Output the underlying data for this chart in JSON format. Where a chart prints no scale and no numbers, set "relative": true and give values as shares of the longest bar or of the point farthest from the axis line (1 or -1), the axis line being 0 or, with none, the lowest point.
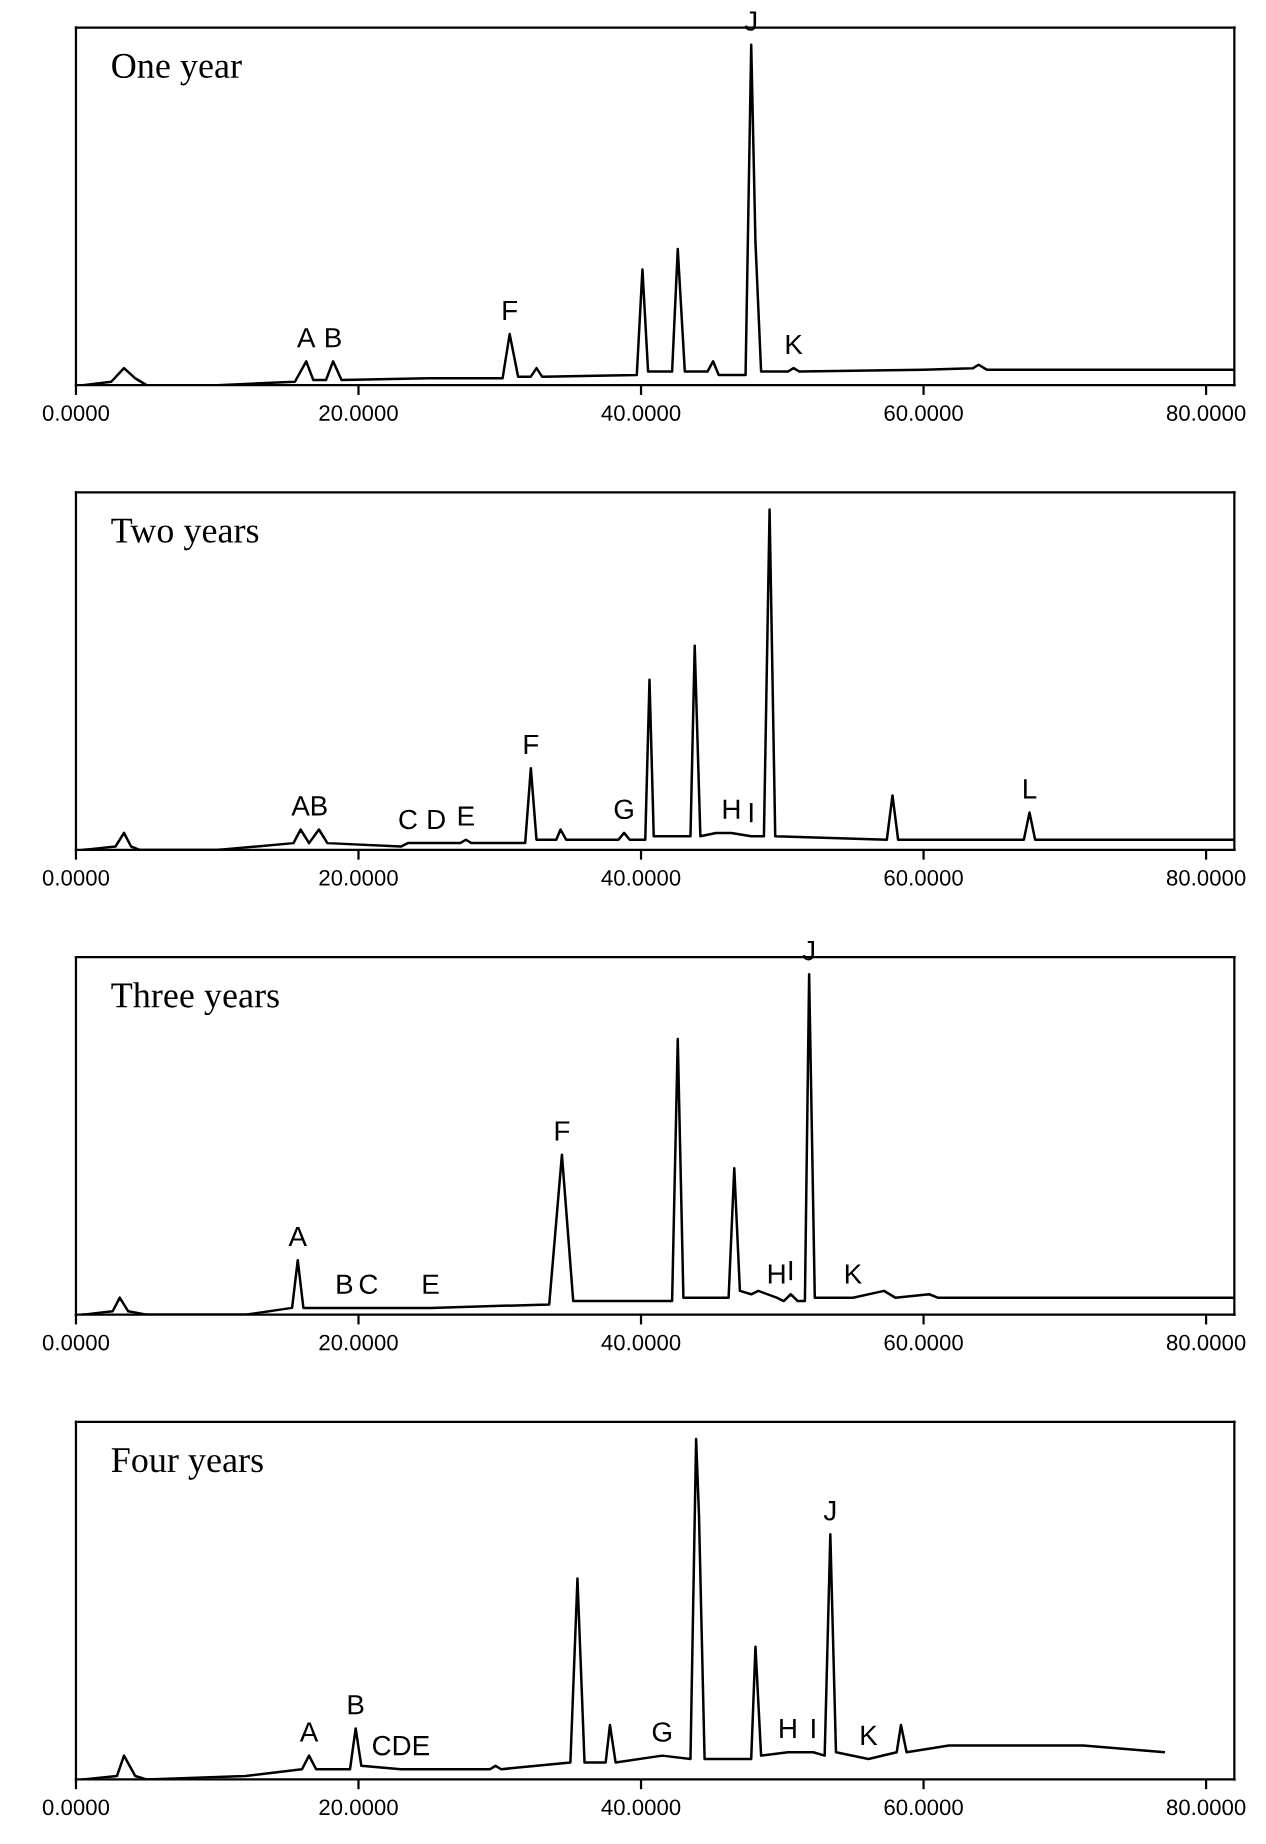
{
  "chart_data": [
    {
      "type": "line",
      "title": "One year",
      "relative": true,
      "tick_labels": "x",
      "grid": false,
      "marker": "none",
      "line_style": "solid",
      "xlim": [
        0,
        82
      ],
      "xticks": [
        {
          "value": 0,
          "label": "0.0000"
        },
        {
          "value": 20,
          "label": "20.0000"
        },
        {
          "value": 40,
          "label": "40.0000"
        },
        {
          "value": 60,
          "label": "60.0000"
        },
        {
          "value": 80,
          "label": "80.0000"
        }
      ],
      "series": [
        {
          "color": "#000000",
          "x": [
            0.5,
            2.5,
            3.4,
            4.2,
            5,
            10,
            15.5,
            16.3,
            16.8,
            17.7,
            18.2,
            18.8,
            25,
            30.2,
            30.7,
            31.3,
            32.2,
            32.6,
            33,
            39.7,
            40.1,
            40.5,
            42.2,
            42.6,
            43.1,
            44.7,
            45.1,
            45.5,
            47.4,
            47.8,
            48.1,
            48.5,
            50.4,
            50.8,
            51.2,
            60,
            63.5,
            63.9,
            64.5,
            82
          ],
          "values": [
            0.0,
            0.01,
            0.05,
            0.02,
            0.0,
            0.0,
            0.01,
            0.07,
            0.015,
            0.015,
            0.07,
            0.015,
            0.02,
            0.02,
            0.15,
            0.025,
            0.025,
            0.05,
            0.025,
            0.03,
            0.34,
            0.04,
            0.04,
            0.4,
            0.04,
            0.04,
            0.07,
            0.03,
            0.03,
            1.0,
            0.42,
            0.04,
            0.04,
            0.05,
            0.04,
            0.045,
            0.05,
            0.06,
            0.045,
            0.045
          ]
        }
      ],
      "annotations": [
        {
          "text": "A",
          "x": 16.3,
          "y": 0.07
        },
        {
          "text": "B",
          "x": 18.2,
          "y": 0.07
        },
        {
          "text": "F",
          "x": 30.7,
          "y": 0.15
        },
        {
          "text": "J",
          "x": 47.8,
          "y": 1.0
        },
        {
          "text": "K",
          "x": 50.8,
          "y": 0.05
        }
      ]
    },
    {
      "type": "line",
      "title": "Two years",
      "relative": true,
      "tick_labels": "x",
      "grid": false,
      "marker": "none",
      "line_style": "solid",
      "xlim": [
        0,
        82
      ],
      "xticks": [
        {
          "value": 0,
          "label": "0.0000"
        },
        {
          "value": 20,
          "label": "20.0000"
        },
        {
          "value": 40,
          "label": "40.0000"
        },
        {
          "value": 60,
          "label": "60.0000"
        },
        {
          "value": 80,
          "label": "80.0000"
        }
      ],
      "series": [
        {
          "color": "#000000",
          "x": [
            0.5,
            2.8,
            3.4,
            3.9,
            4.5,
            10,
            15.4,
            15.9,
            16.5,
            17.2,
            17.8,
            23,
            23.5,
            25.5,
            27.2,
            27.6,
            28,
            31.8,
            32.2,
            32.6,
            34,
            34.3,
            34.7,
            38.4,
            38.8,
            39.2,
            40.3,
            40.6,
            40.9,
            43.5,
            43.8,
            44.2,
            45.3,
            46.4,
            47.8,
            48.7,
            49.1,
            49.5,
            57.4,
            57.8,
            58.2,
            67.1,
            67.5,
            67.9,
            82
          ],
          "values": [
            0.0,
            0.01,
            0.05,
            0.01,
            0.0,
            0.0,
            0.02,
            0.06,
            0.02,
            0.06,
            0.02,
            0.01,
            0.02,
            0.02,
            0.02,
            0.03,
            0.02,
            0.02,
            0.24,
            0.03,
            0.03,
            0.06,
            0.03,
            0.03,
            0.05,
            0.03,
            0.03,
            0.5,
            0.04,
            0.04,
            0.6,
            0.04,
            0.05,
            0.05,
            0.04,
            0.04,
            1.0,
            0.04,
            0.03,
            0.16,
            0.03,
            0.03,
            0.11,
            0.03,
            0.03
          ]
        }
      ],
      "annotations": [
        {
          "text": "A",
          "x": 15.9,
          "y": 0.06
        },
        {
          "text": "B",
          "x": 17.2,
          "y": 0.06
        },
        {
          "text": "C",
          "x": 23.5,
          "y": 0.02
        },
        {
          "text": "D",
          "x": 25.5,
          "y": 0.02
        },
        {
          "text": "E",
          "x": 27.6,
          "y": 0.03
        },
        {
          "text": "F",
          "x": 32.2,
          "y": 0.24
        },
        {
          "text": "G",
          "x": 38.8,
          "y": 0.05
        },
        {
          "text": "H",
          "x": 46.4,
          "y": 0.05
        },
        {
          "text": "I",
          "x": 47.8,
          "y": 0.04
        },
        {
          "text": "L",
          "x": 67.5,
          "y": 0.11
        }
      ]
    },
    {
      "type": "line",
      "title": "Three years",
      "relative": true,
      "tick_labels": "x",
      "grid": false,
      "marker": "none",
      "line_style": "solid",
      "xlim": [
        0,
        82
      ],
      "xticks": [
        {
          "value": 0,
          "label": "0.0000"
        },
        {
          "value": 20,
          "label": "20.0000"
        },
        {
          "value": 40,
          "label": "40.0000"
        },
        {
          "value": 60,
          "label": "60.0000"
        },
        {
          "value": 80,
          "label": "80.0000"
        }
      ],
      "series": [
        {
          "color": "#000000",
          "x": [
            0.5,
            2.6,
            3.1,
            3.7,
            5,
            12,
            15.3,
            15.7,
            16.1,
            19.0,
            20.7,
            25.1,
            33.5,
            34.4,
            35.2,
            42.2,
            42.6,
            43.0,
            46.2,
            46.6,
            47.0,
            47.8,
            48.3,
            49.6,
            50.1,
            50.6,
            51.1,
            51.6,
            51.9,
            52.3,
            55.0,
            57.2,
            58,
            60.4,
            61,
            82
          ],
          "values": [
            0.0,
            0.01,
            0.05,
            0.01,
            0.0,
            0.0,
            0.02,
            0.16,
            0.02,
            0.02,
            0.02,
            0.02,
            0.03,
            0.47,
            0.04,
            0.04,
            0.81,
            0.05,
            0.05,
            0.43,
            0.07,
            0.06,
            0.07,
            0.05,
            0.04,
            0.06,
            0.04,
            0.04,
            1.0,
            0.05,
            0.05,
            0.07,
            0.05,
            0.06,
            0.05,
            0.05
          ]
        }
      ],
      "annotations": [
        {
          "text": "A",
          "x": 15.7,
          "y": 0.16
        },
        {
          "text": "B",
          "x": 19.0,
          "y": 0.02
        },
        {
          "text": "C",
          "x": 20.7,
          "y": 0.02
        },
        {
          "text": "E",
          "x": 25.1,
          "y": 0.02
        },
        {
          "text": "F",
          "x": 34.4,
          "y": 0.47
        },
        {
          "text": "H",
          "x": 49.6,
          "y": 0.05
        },
        {
          "text": "I",
          "x": 50.6,
          "y": 0.06
        },
        {
          "text": "J",
          "x": 51.9,
          "y": 1.0
        },
        {
          "text": "K",
          "x": 55.0,
          "y": 0.05
        }
      ]
    },
    {
      "type": "line",
      "title": "Four years",
      "relative": true,
      "tick_labels": "x",
      "grid": false,
      "marker": "none",
      "line_style": "solid",
      "xlim": [
        0,
        82
      ],
      "xticks": [
        {
          "value": 0,
          "label": "0.0000"
        },
        {
          "value": 20,
          "label": "20.0000"
        },
        {
          "value": 40,
          "label": "40.0000"
        },
        {
          "value": 60,
          "label": "60.0000"
        },
        {
          "value": 80,
          "label": "80.0000"
        }
      ],
      "series": [
        {
          "color": "#000000",
          "x": [
            0.5,
            2.9,
            3.4,
            4.2,
            5,
            12,
            16.0,
            16.5,
            17.0,
            19.4,
            19.8,
            20.2,
            23,
            29.3,
            29.7,
            30.1,
            35.0,
            35.5,
            36.0,
            37.5,
            37.8,
            38.2,
            41.5,
            43.5,
            43.9,
            44.1,
            44.5,
            47.8,
            48.1,
            48.5,
            50.4,
            52.2,
            53.0,
            53.4,
            53.8,
            56.1,
            58.1,
            58.4,
            58.8,
            61.8,
            71.3,
            77
          ],
          "values": [
            0.0,
            0.01,
            0.07,
            0.01,
            0.0,
            0.01,
            0.03,
            0.07,
            0.03,
            0.03,
            0.15,
            0.04,
            0.03,
            0.03,
            0.04,
            0.03,
            0.05,
            0.59,
            0.05,
            0.05,
            0.16,
            0.05,
            0.07,
            0.06,
            1.0,
            0.78,
            0.06,
            0.06,
            0.39,
            0.07,
            0.08,
            0.08,
            0.07,
            0.72,
            0.08,
            0.06,
            0.08,
            0.16,
            0.08,
            0.1,
            0.1,
            0.08
          ]
        }
      ],
      "annotations": [
        {
          "text": "A",
          "x": 16.5,
          "y": 0.07
        },
        {
          "text": "B",
          "x": 19.8,
          "y": 0.15
        },
        {
          "text": "CDE",
          "x": 23,
          "y": 0.03
        },
        {
          "text": "G",
          "x": 41.5,
          "y": 0.07
        },
        {
          "text": "H",
          "x": 50.4,
          "y": 0.08
        },
        {
          "text": "I",
          "x": 52.2,
          "y": 0.08
        },
        {
          "text": "J",
          "x": 53.4,
          "y": 0.72
        },
        {
          "text": "K",
          "x": 56.1,
          "y": 0.06
        }
      ]
    }
  ]
}
